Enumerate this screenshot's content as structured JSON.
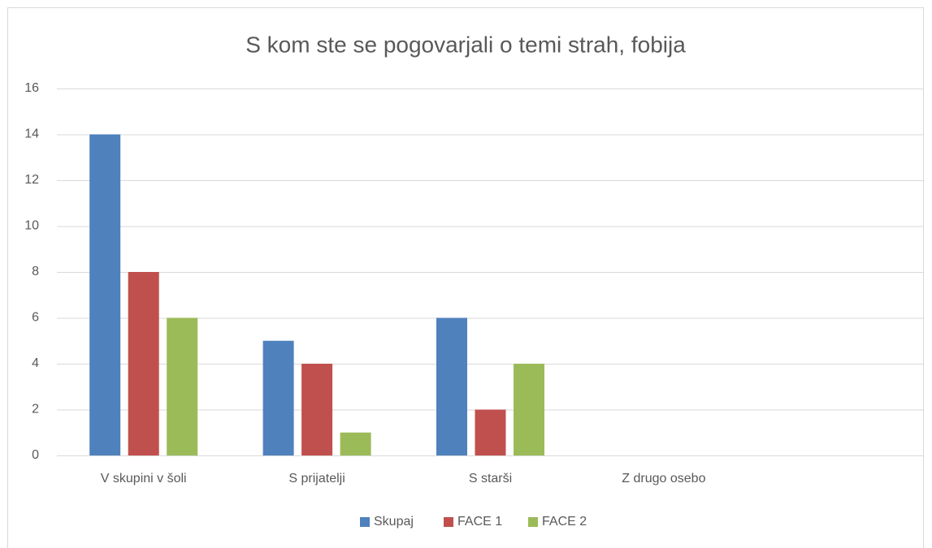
{
  "chart_data": {
    "type": "bar",
    "title": "S kom ste se pogovarjali o temi strah, fobija",
    "categories": [
      "V skupini v šoli",
      "S prijatelji",
      "S starši",
      "Z drugo osebo",
      null
    ],
    "series": [
      {
        "name": "Skupaj",
        "color": "#4f81bd",
        "values": [
          14,
          5,
          6,
          0,
          null
        ]
      },
      {
        "name": "FACE 1",
        "color": "#c0504d",
        "values": [
          8,
          4,
          2,
          0,
          null
        ]
      },
      {
        "name": "FACE 2",
        "color": "#9bbb59",
        "values": [
          6,
          1,
          4,
          0,
          null
        ]
      }
    ],
    "ylim": [
      0,
      16
    ],
    "yticks": [
      0,
      2,
      4,
      6,
      8,
      10,
      12,
      14,
      16
    ],
    "grid": true,
    "legend": "bottom"
  }
}
